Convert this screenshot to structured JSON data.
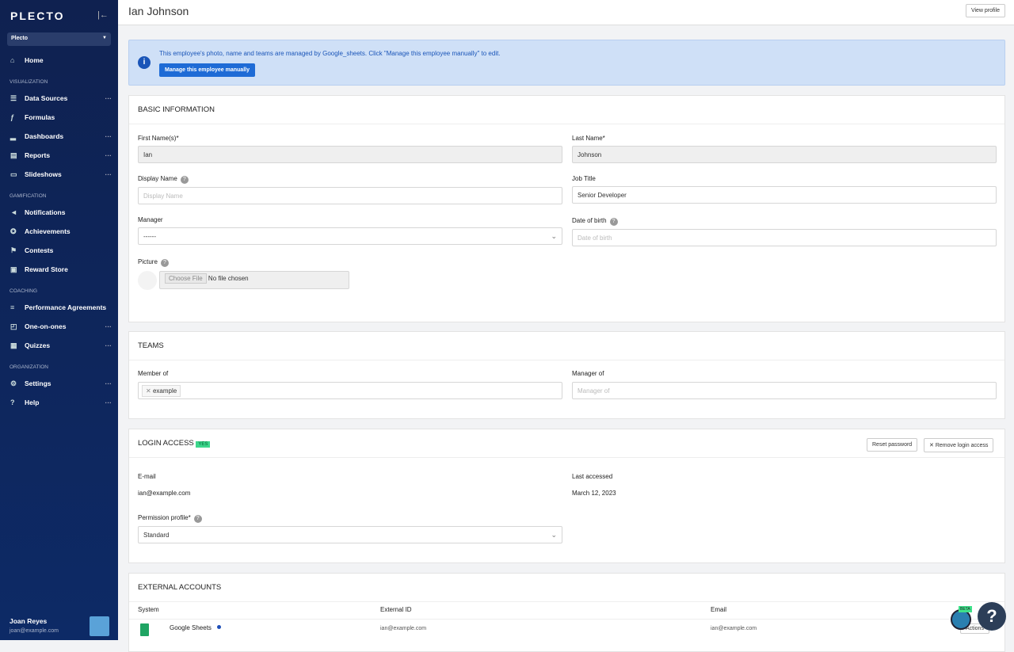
{
  "sidebar": {
    "logo": "PLECTO",
    "org": "Plecto",
    "items": {
      "home": "Home",
      "data_sources": "Data Sources",
      "formulas": "Formulas",
      "dashboards": "Dashboards",
      "reports": "Reports",
      "slideshows": "Slideshows",
      "notifications": "Notifications",
      "achievements": "Achievements",
      "contests": "Contests",
      "reward_store": "Reward Store",
      "performance": "Performance Agreements",
      "one_on_ones": "One-on-ones",
      "quizzes": "Quizzes",
      "settings": "Settings",
      "help": "Help"
    },
    "sections": {
      "vis": "VISUALIZATION",
      "gam": "GAMIFICATION",
      "coach": "COACHING",
      "org": "ORGANIZATION"
    },
    "user_name": "Joan Reyes",
    "user_email": "joan@example.com"
  },
  "header": {
    "title": "Ian Johnson",
    "view_profile": "View profile"
  },
  "alert": {
    "text": "This employee's photo, name and teams are managed by Google_sheets. Click \"Manage this employee manually\" to edit.",
    "button": "Manage this employee manually"
  },
  "basic": {
    "heading": "BASIC INFORMATION",
    "first_label": "First Name(s)*",
    "first_value": "Ian",
    "last_label": "Last Name*",
    "last_value": "Johnson",
    "display_label": "Display Name",
    "display_placeholder": "Display Name",
    "job_label": "Job Title",
    "job_value": "Senior Developer",
    "manager_label": "Manager",
    "manager_value": "------",
    "dob_label": "Date of birth",
    "dob_placeholder": "Date of birth",
    "picture_label": "Picture",
    "choose_file": "Choose File",
    "no_file": "No file chosen"
  },
  "teams": {
    "heading": "TEAMS",
    "member_label": "Member of",
    "member_tag": "example",
    "manager_label": "Manager of",
    "manager_placeholder": "Manager of"
  },
  "login": {
    "heading": "LOGIN ACCESS",
    "badge": "YES",
    "reset": "Reset password",
    "remove": "Remove login access",
    "email_label": "E-mail",
    "email_value": "ian@example.com",
    "last_label": "Last accessed",
    "last_value": "March 12, 2023",
    "perm_label": "Permission profile*",
    "perm_value": "Standard"
  },
  "external": {
    "heading": "EXTERNAL ACCOUNTS",
    "columns": [
      "System",
      "External ID",
      "Email"
    ],
    "rows": [
      {
        "system": "Google Sheets",
        "logo_text": "Google Sheets",
        "external_id": "ian@example.com",
        "email": "ian@example.com",
        "action": "Actions"
      }
    ]
  },
  "widget": {
    "beta": "BETA",
    "help": "?"
  }
}
